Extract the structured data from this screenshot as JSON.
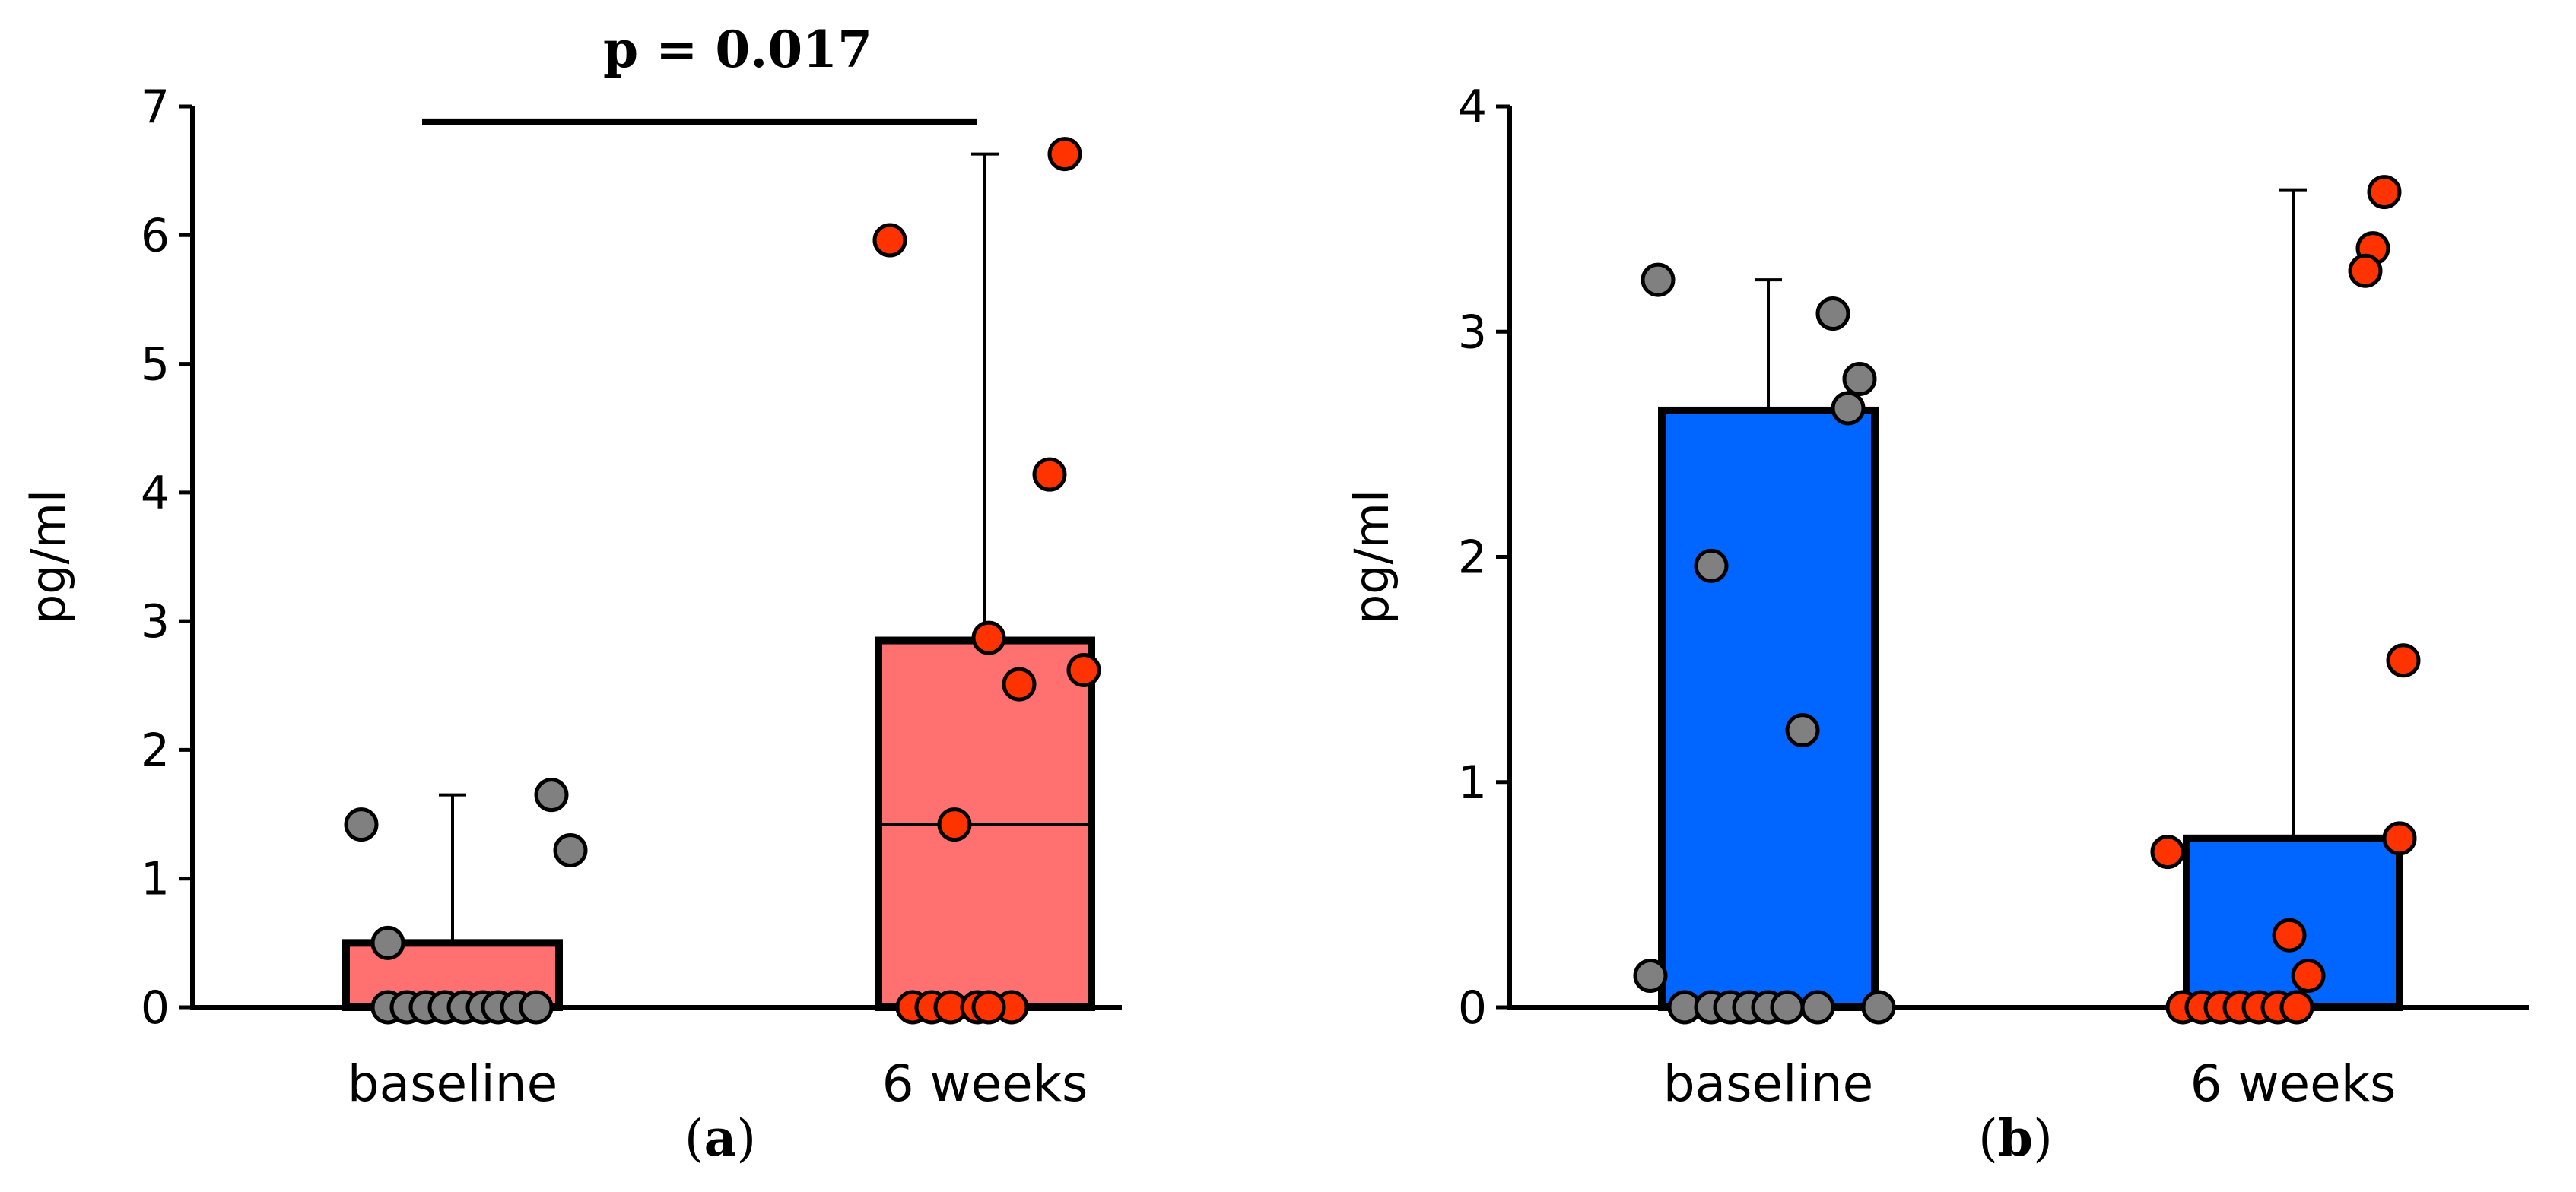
{
  "chart_data": [
    {
      "type": "bar",
      "panel_label": "a",
      "title": "",
      "xlabel": "",
      "ylabel": "pg/ml",
      "ylim": [
        0,
        7
      ],
      "yticks": [
        0,
        1,
        2,
        3,
        4,
        5,
        6,
        7
      ],
      "categories": [
        "baseline",
        "6 weeks"
      ],
      "values": [
        0.5,
        2.85
      ],
      "error_upper": [
        1.65,
        6.63
      ],
      "medians": [
        null,
        1.42
      ],
      "bar_color": "#ff7070",
      "significance": {
        "label": "p = 0.017",
        "y": 6.88
      },
      "points": [
        {
          "category": "baseline",
          "color": "#808080",
          "values": [
            1.42,
            0.5,
            0,
            0,
            0,
            0,
            0,
            0,
            0,
            0,
            0,
            1.65,
            1.22
          ]
        },
        {
          "category": "6 weeks",
          "color": "#ff3300",
          "values": [
            5.96,
            0,
            0,
            0,
            0,
            0,
            1.42,
            0,
            2.87,
            2.51,
            4.14,
            2.62,
            6.63
          ]
        }
      ]
    },
    {
      "type": "bar",
      "panel_label": "b",
      "title": "",
      "xlabel": "",
      "ylabel": "pg/ml",
      "ylim": [
        0,
        4
      ],
      "yticks": [
        0,
        1,
        2,
        3,
        4
      ],
      "categories": [
        "baseline",
        "6 weeks"
      ],
      "values": [
        2.65,
        0.75
      ],
      "error_upper": [
        3.23,
        3.63
      ],
      "medians": [
        null,
        null
      ],
      "bar_color": "#0066ff",
      "significance": null,
      "points": [
        {
          "category": "baseline",
          "color": "#808080",
          "values": [
            3.23,
            0.14,
            0,
            0,
            1.96,
            0,
            0,
            0,
            0,
            1.23,
            0,
            3.08,
            2.66,
            2.79,
            0
          ]
        },
        {
          "category": "6 weeks",
          "color": "#ff3300",
          "values": [
            0.69,
            0,
            0,
            0,
            0,
            0,
            0,
            0.32,
            0,
            0.14,
            3.62,
            3.37,
            3.27,
            0.75,
            1.54
          ]
        }
      ]
    }
  ]
}
